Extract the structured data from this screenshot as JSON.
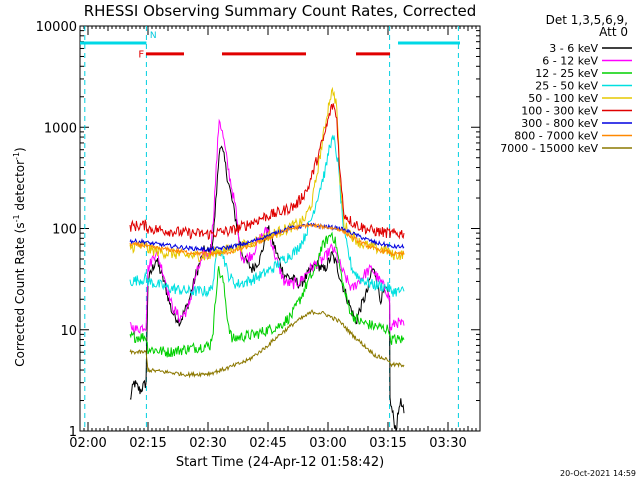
{
  "chart_data": {
    "type": "line",
    "title": "RHESSI Observing Summary Count Rates, Corrected",
    "xlabel": "Start Time (24-Apr-12 01:58:42)",
    "ylabel": "Corrected Count Rate (s",
    "ylabel_sup": "-1",
    "ylabel_mid": " detector",
    "ylabel_sup2": "-1",
    "ylabel_end": ")",
    "yscale": "log",
    "ylim": [
      1,
      10000
    ],
    "xlim_min": [
      118,
      218
    ],
    "x_ticks": [
      {
        "min": 120,
        "label": "02:00"
      },
      {
        "min": 135,
        "label": "02:15"
      },
      {
        "min": 150,
        "label": "02:30"
      },
      {
        "min": 165,
        "label": "02:45"
      },
      {
        "min": 180,
        "label": "03:00"
      },
      {
        "min": 195,
        "label": "03:15"
      },
      {
        "min": 210,
        "label": "03:30"
      }
    ],
    "y_ticks": [
      {
        "v": 1,
        "label": "1"
      },
      {
        "v": 10,
        "label": "10"
      },
      {
        "v": 100,
        "label": "100"
      },
      {
        "v": 1000,
        "label": "1000"
      },
      {
        "v": 10000,
        "label": "10000"
      }
    ],
    "legend_header": [
      "Det 1,3,5,6,9,",
      "Att 0"
    ],
    "legend_position": "top-right outside",
    "timestamp": "20-Oct-2021 14:59",
    "flags": [
      {
        "label": "F",
        "color": "#e00000"
      },
      {
        "label": "N",
        "color": "#00c8dc"
      }
    ],
    "night_bars": [
      [
        118,
        134.6
      ],
      [
        197.5,
        213
      ]
    ],
    "flare_bars": [
      [
        134.5,
        144
      ],
      [
        153.5,
        174.5
      ],
      [
        187,
        195.5
      ]
    ],
    "night_lines": [
      119.2,
      134.6,
      195.4,
      212.6
    ],
    "series": [
      {
        "name": "3 - 6 keV",
        "color": "#000000",
        "points": [
          [
            130.5,
            2
          ],
          [
            131.5,
            3
          ],
          [
            133,
            2.5
          ],
          [
            134.5,
            3
          ],
          [
            135,
            30
          ],
          [
            137,
            50
          ],
          [
            139,
            30
          ],
          [
            141,
            15
          ],
          [
            143,
            12
          ],
          [
            145,
            18
          ],
          [
            147,
            35
          ],
          [
            149,
            60
          ],
          [
            150.5,
            58
          ],
          [
            151.3,
            80
          ],
          [
            153,
            700
          ],
          [
            154,
            500
          ],
          [
            155,
            300
          ],
          [
            157,
            120
          ],
          [
            158,
            70
          ],
          [
            159,
            50
          ],
          [
            161,
            40
          ],
          [
            163,
            50
          ],
          [
            165,
            100
          ],
          [
            167,
            60
          ],
          [
            169,
            35
          ],
          [
            171,
            32
          ],
          [
            173,
            28
          ],
          [
            175,
            35
          ],
          [
            177,
            45
          ],
          [
            178,
            42
          ],
          [
            179,
            38
          ],
          [
            181,
            55
          ],
          [
            182,
            45
          ],
          [
            184,
            25
          ],
          [
            186,
            15
          ],
          [
            187,
            12
          ],
          [
            188,
            16
          ],
          [
            190,
            25
          ],
          [
            191,
            40
          ],
          [
            192,
            35
          ],
          [
            193,
            20
          ],
          [
            194.5,
            25
          ],
          [
            195.4,
            20
          ],
          [
            195.5,
            2
          ],
          [
            197,
            1
          ],
          [
            198,
            2
          ],
          [
            199,
            1.5
          ]
        ]
      },
      {
        "name": "6 - 12 keV",
        "color": "#ff00ff",
        "points": [
          [
            130.5,
            11
          ],
          [
            132,
            10
          ],
          [
            134.5,
            11
          ],
          [
            135,
            40
          ],
          [
            137,
            60
          ],
          [
            139,
            35
          ],
          [
            141,
            17
          ],
          [
            143,
            13
          ],
          [
            145,
            16
          ],
          [
            147,
            35
          ],
          [
            149,
            55
          ],
          [
            150.5,
            55
          ],
          [
            151.3,
            120
          ],
          [
            152.8,
            1250
          ],
          [
            153.8,
            800
          ],
          [
            155,
            400
          ],
          [
            157,
            150
          ],
          [
            158,
            60
          ],
          [
            159,
            50
          ],
          [
            161,
            55
          ],
          [
            163,
            80
          ],
          [
            165,
            100
          ],
          [
            167,
            50
          ],
          [
            169,
            30
          ],
          [
            171,
            28
          ],
          [
            173,
            30
          ],
          [
            175,
            38
          ],
          [
            177,
            45
          ],
          [
            179,
            50
          ],
          [
            181,
            65
          ],
          [
            182,
            55
          ],
          [
            184,
            35
          ],
          [
            186,
            25
          ],
          [
            187,
            28
          ],
          [
            189,
            35
          ],
          [
            190,
            38
          ],
          [
            191,
            40
          ],
          [
            193,
            30
          ],
          [
            194.5,
            25
          ],
          [
            195.4,
            20
          ],
          [
            195.5,
            10
          ],
          [
            197,
            12
          ],
          [
            199,
            11
          ]
        ]
      },
      {
        "name": "12 - 25 keV",
        "color": "#00d000",
        "points": [
          [
            130.5,
            8.5
          ],
          [
            134.5,
            8.5
          ],
          [
            135,
            6.5
          ],
          [
            140,
            6
          ],
          [
            145,
            6.5
          ],
          [
            150.5,
            7
          ],
          [
            151.3,
            10
          ],
          [
            152.5,
            40
          ],
          [
            153.8,
            30
          ],
          [
            155,
            12
          ],
          [
            156,
            8
          ],
          [
            158,
            8.5
          ],
          [
            162,
            9
          ],
          [
            165,
            10
          ],
          [
            168,
            11
          ],
          [
            171,
            14
          ],
          [
            173,
            20
          ],
          [
            175,
            30
          ],
          [
            177,
            40
          ],
          [
            178,
            60
          ],
          [
            179,
            70
          ],
          [
            180,
            80
          ],
          [
            181,
            90
          ],
          [
            182,
            70
          ],
          [
            183,
            40
          ],
          [
            184,
            25
          ],
          [
            185,
            18
          ],
          [
            186,
            14
          ],
          [
            188,
            12
          ],
          [
            191,
            11
          ],
          [
            195.4,
            10
          ],
          [
            195.5,
            8
          ],
          [
            199,
            8
          ]
        ]
      },
      {
        "name": "25 - 50 keV",
        "color": "#00e0e0",
        "points": [
          [
            130.5,
            30
          ],
          [
            134.5,
            32
          ],
          [
            135,
            30
          ],
          [
            140,
            26
          ],
          [
            145,
            24
          ],
          [
            150.5,
            24
          ],
          [
            151.3,
            30
          ],
          [
            152.5,
            65
          ],
          [
            153.8,
            55
          ],
          [
            155,
            35
          ],
          [
            157,
            28
          ],
          [
            160,
            30
          ],
          [
            163,
            34
          ],
          [
            166,
            40
          ],
          [
            169,
            50
          ],
          [
            172,
            60
          ],
          [
            174,
            80
          ],
          [
            176,
            130
          ],
          [
            178,
            250
          ],
          [
            179.5,
            400
          ],
          [
            180.5,
            700
          ],
          [
            181.5,
            750
          ],
          [
            182.5,
            450
          ],
          [
            183.2,
            200
          ],
          [
            184,
            90
          ],
          [
            185,
            60
          ],
          [
            186,
            40
          ],
          [
            188,
            32
          ],
          [
            191,
            28
          ],
          [
            195.4,
            26
          ],
          [
            195.5,
            24
          ],
          [
            199,
            24
          ]
        ]
      },
      {
        "name": "50 - 100 keV",
        "color": "#e6c800",
        "points": [
          [
            130.5,
            65
          ],
          [
            134.5,
            68
          ],
          [
            135,
            62
          ],
          [
            140,
            57
          ],
          [
            145,
            54
          ],
          [
            150.5,
            53
          ],
          [
            151.3,
            58
          ],
          [
            153,
            60
          ],
          [
            156,
            63
          ],
          [
            160,
            70
          ],
          [
            165,
            85
          ],
          [
            170,
            100
          ],
          [
            174,
            120
          ],
          [
            176,
            180
          ],
          [
            177.5,
            400
          ],
          [
            179,
            900
          ],
          [
            180.5,
            2000
          ],
          [
            181.3,
            2300
          ],
          [
            182.2,
            1600
          ],
          [
            183,
            300
          ],
          [
            184,
            110
          ],
          [
            186,
            85
          ],
          [
            188,
            72
          ],
          [
            191,
            65
          ],
          [
            195.4,
            60
          ],
          [
            195.5,
            55
          ],
          [
            199,
            55
          ]
        ]
      },
      {
        "name": "100 - 300 keV",
        "color": "#e00000",
        "points": [
          [
            130.5,
            105
          ],
          [
            134.5,
            108
          ],
          [
            135,
            100
          ],
          [
            140,
            95
          ],
          [
            145,
            90
          ],
          [
            150.5,
            88
          ],
          [
            151.3,
            90
          ],
          [
            153,
            92
          ],
          [
            156,
            95
          ],
          [
            160,
            110
          ],
          [
            164,
            130
          ],
          [
            168,
            145
          ],
          [
            172,
            170
          ],
          [
            175,
            250
          ],
          [
            177,
            450
          ],
          [
            179,
            800
          ],
          [
            180.5,
            1400
          ],
          [
            181.3,
            1700
          ],
          [
            182.2,
            1200
          ],
          [
            183,
            350
          ],
          [
            184,
            140
          ],
          [
            186,
            115
          ],
          [
            188,
            105
          ],
          [
            191,
            95
          ],
          [
            195.4,
            90
          ],
          [
            195.5,
            88
          ],
          [
            199,
            90
          ]
        ]
      },
      {
        "name": "300 - 800 keV",
        "color": "#0000e0",
        "points": [
          [
            130.5,
            75
          ],
          [
            134.5,
            74
          ],
          [
            135,
            72
          ],
          [
            140,
            68
          ],
          [
            145,
            64
          ],
          [
            150.5,
            62
          ],
          [
            155,
            65
          ],
          [
            160,
            72
          ],
          [
            165,
            85
          ],
          [
            170,
            100
          ],
          [
            175,
            108
          ],
          [
            179,
            105
          ],
          [
            183,
            100
          ],
          [
            186,
            90
          ],
          [
            189,
            80
          ],
          [
            192,
            72
          ],
          [
            195.4,
            68
          ],
          [
            195.5,
            66
          ],
          [
            199,
            66
          ]
        ]
      },
      {
        "name": "800 - 7000 keV",
        "color": "#ff8800",
        "points": [
          [
            130.5,
            70
          ],
          [
            134.5,
            68
          ],
          [
            135,
            66
          ],
          [
            140,
            62
          ],
          [
            145,
            58
          ],
          [
            150.5,
            56
          ],
          [
            155,
            58
          ],
          [
            160,
            66
          ],
          [
            165,
            80
          ],
          [
            170,
            98
          ],
          [
            175,
            108
          ],
          [
            179,
            104
          ],
          [
            183,
            98
          ],
          [
            186,
            82
          ],
          [
            189,
            70
          ],
          [
            192,
            62
          ],
          [
            195.4,
            58
          ],
          [
            195.5,
            56
          ],
          [
            199,
            56
          ]
        ]
      },
      {
        "name": "7000 - 15000 keV",
        "color": "#8c7800",
        "points": [
          [
            130.5,
            6
          ],
          [
            134.5,
            6
          ],
          [
            135,
            4
          ],
          [
            140,
            3.8
          ],
          [
            145,
            3.6
          ],
          [
            150.5,
            3.7
          ],
          [
            155,
            4.2
          ],
          [
            160,
            5
          ],
          [
            164,
            6.5
          ],
          [
            168,
            9
          ],
          [
            172,
            12
          ],
          [
            176,
            15
          ],
          [
            179,
            14.5
          ],
          [
            183,
            12
          ],
          [
            186,
            9
          ],
          [
            189,
            7
          ],
          [
            192,
            5.5
          ],
          [
            195.4,
            5
          ],
          [
            195.5,
            4.5
          ],
          [
            199,
            4.5
          ]
        ]
      }
    ]
  }
}
